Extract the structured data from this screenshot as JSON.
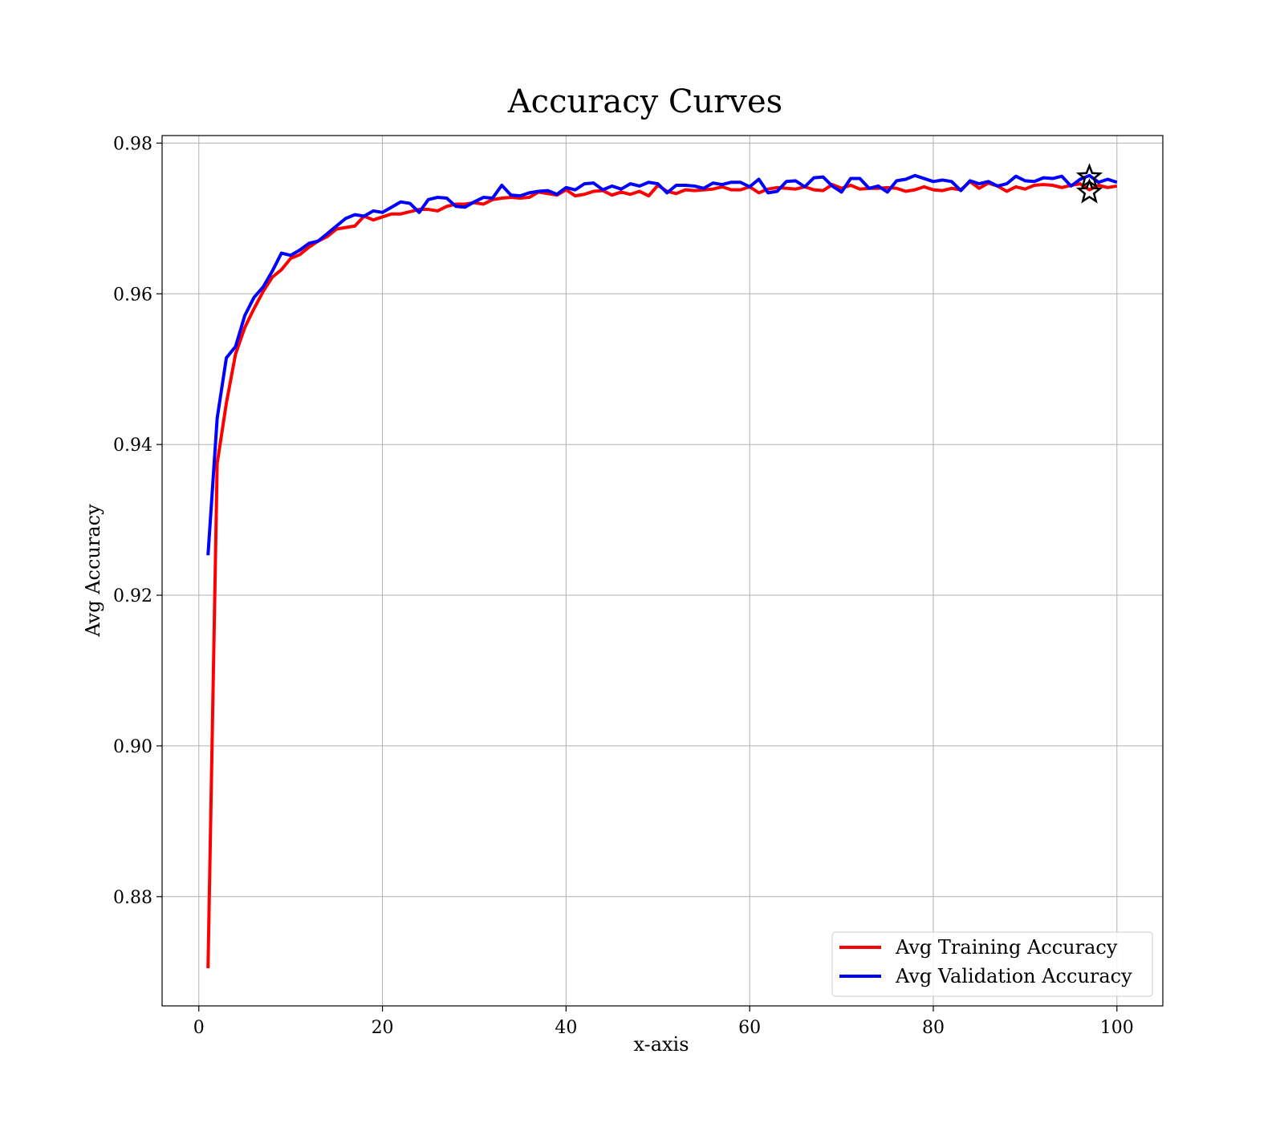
{
  "chart_data": {
    "type": "line",
    "title": "Accuracy Curves",
    "xlabel": "x-axis",
    "ylabel": "Avg Accuracy",
    "xlim": [
      -4,
      105
    ],
    "ylim": [
      0.8655,
      0.981
    ],
    "xticks": [
      0,
      20,
      40,
      60,
      80,
      100
    ],
    "yticks": [
      0.88,
      0.9,
      0.92,
      0.94,
      0.96,
      0.98
    ],
    "xtick_labels": [
      "0",
      "20",
      "40",
      "60",
      "80",
      "100"
    ],
    "ytick_labels": [
      "0.88",
      "0.90",
      "0.92",
      "0.94",
      "0.96",
      "0.98"
    ],
    "grid": true,
    "legend_position": "bottom-right",
    "x": [
      1,
      2,
      3,
      4,
      5,
      6,
      7,
      8,
      9,
      10,
      11,
      12,
      13,
      14,
      15,
      16,
      17,
      18,
      19,
      20,
      21,
      22,
      23,
      24,
      25,
      26,
      27,
      28,
      29,
      30,
      31,
      32,
      33,
      34,
      35,
      36,
      37,
      38,
      39,
      40,
      41,
      42,
      43,
      44,
      45,
      46,
      47,
      48,
      49,
      50,
      51,
      52,
      53,
      54,
      55,
      56,
      57,
      58,
      59,
      60,
      61,
      62,
      63,
      64,
      65,
      66,
      67,
      68,
      69,
      70,
      71,
      72,
      73,
      74,
      75,
      76,
      77,
      78,
      79,
      80,
      81,
      82,
      83,
      84,
      85,
      86,
      87,
      88,
      89,
      90,
      91,
      92,
      93,
      94,
      95,
      96,
      97,
      98,
      99,
      100
    ],
    "series": [
      {
        "name": "Avg Training Accuracy",
        "color": "#ff0000",
        "values": [
          0.8705,
          0.9375,
          0.9455,
          0.952,
          0.9555,
          0.958,
          0.9603,
          0.9622,
          0.9632,
          0.9647,
          0.9652,
          0.9662,
          0.967,
          0.9676,
          0.9686,
          0.9688,
          0.969,
          0.9703,
          0.9698,
          0.9702,
          0.9706,
          0.9706,
          0.9709,
          0.9712,
          0.9712,
          0.971,
          0.9716,
          0.9719,
          0.9719,
          0.9721,
          0.9719,
          0.9725,
          0.9727,
          0.9728,
          0.9727,
          0.9728,
          0.9735,
          0.9733,
          0.9731,
          0.9738,
          0.973,
          0.9732,
          0.9736,
          0.9737,
          0.9731,
          0.9735,
          0.9732,
          0.9736,
          0.973,
          0.9744,
          0.9736,
          0.9733,
          0.9738,
          0.9737,
          0.9738,
          0.9739,
          0.9742,
          0.9738,
          0.9738,
          0.9742,
          0.9734,
          0.9739,
          0.9741,
          0.974,
          0.9739,
          0.9742,
          0.9738,
          0.9737,
          0.9745,
          0.974,
          0.9744,
          0.9739,
          0.974,
          0.974,
          0.9741,
          0.974,
          0.9736,
          0.9738,
          0.9742,
          0.9738,
          0.9737,
          0.974,
          0.9738,
          0.9749,
          0.974,
          0.9747,
          0.9743,
          0.9736,
          0.9742,
          0.9739,
          0.9744,
          0.9745,
          0.9744,
          0.9741,
          0.9744,
          0.9746,
          0.9738,
          0.9744,
          0.9741,
          0.9743
        ]
      },
      {
        "name": "Avg Validation Accuracy",
        "color": "#0000ff",
        "values": [
          0.9253,
          0.9435,
          0.9515,
          0.953,
          0.9571,
          0.9595,
          0.9609,
          0.963,
          0.9654,
          0.9651,
          0.9658,
          0.9667,
          0.967,
          0.968,
          0.969,
          0.97,
          0.9705,
          0.9703,
          0.971,
          0.9708,
          0.9715,
          0.9722,
          0.972,
          0.9708,
          0.9725,
          0.9728,
          0.9727,
          0.9716,
          0.9715,
          0.9722,
          0.9728,
          0.9727,
          0.9744,
          0.9731,
          0.973,
          0.9734,
          0.9736,
          0.9737,
          0.9732,
          0.9741,
          0.9738,
          0.9746,
          0.9747,
          0.9738,
          0.9743,
          0.9739,
          0.9746,
          0.9743,
          0.9748,
          0.9746,
          0.9734,
          0.9744,
          0.9744,
          0.9743,
          0.974,
          0.9747,
          0.9745,
          0.9748,
          0.9748,
          0.9742,
          0.9752,
          0.9734,
          0.9736,
          0.9749,
          0.975,
          0.9742,
          0.9754,
          0.9755,
          0.9743,
          0.9735,
          0.9753,
          0.9753,
          0.974,
          0.9743,
          0.9735,
          0.975,
          0.9752,
          0.9757,
          0.9753,
          0.9749,
          0.9751,
          0.9749,
          0.9737,
          0.975,
          0.9746,
          0.9749,
          0.9743,
          0.9746,
          0.9756,
          0.975,
          0.9749,
          0.9754,
          0.9753,
          0.9756,
          0.9743,
          0.9752,
          0.9757,
          0.9748,
          0.9752,
          0.9748
        ]
      }
    ],
    "markers": [
      {
        "series": "Avg Validation Accuracy",
        "shape": "star",
        "x": 97,
        "y": 0.9755,
        "color": "#000000"
      },
      {
        "series": "Avg Training Accuracy",
        "shape": "star",
        "x": 97,
        "y": 0.9735,
        "color": "#000000"
      }
    ]
  }
}
